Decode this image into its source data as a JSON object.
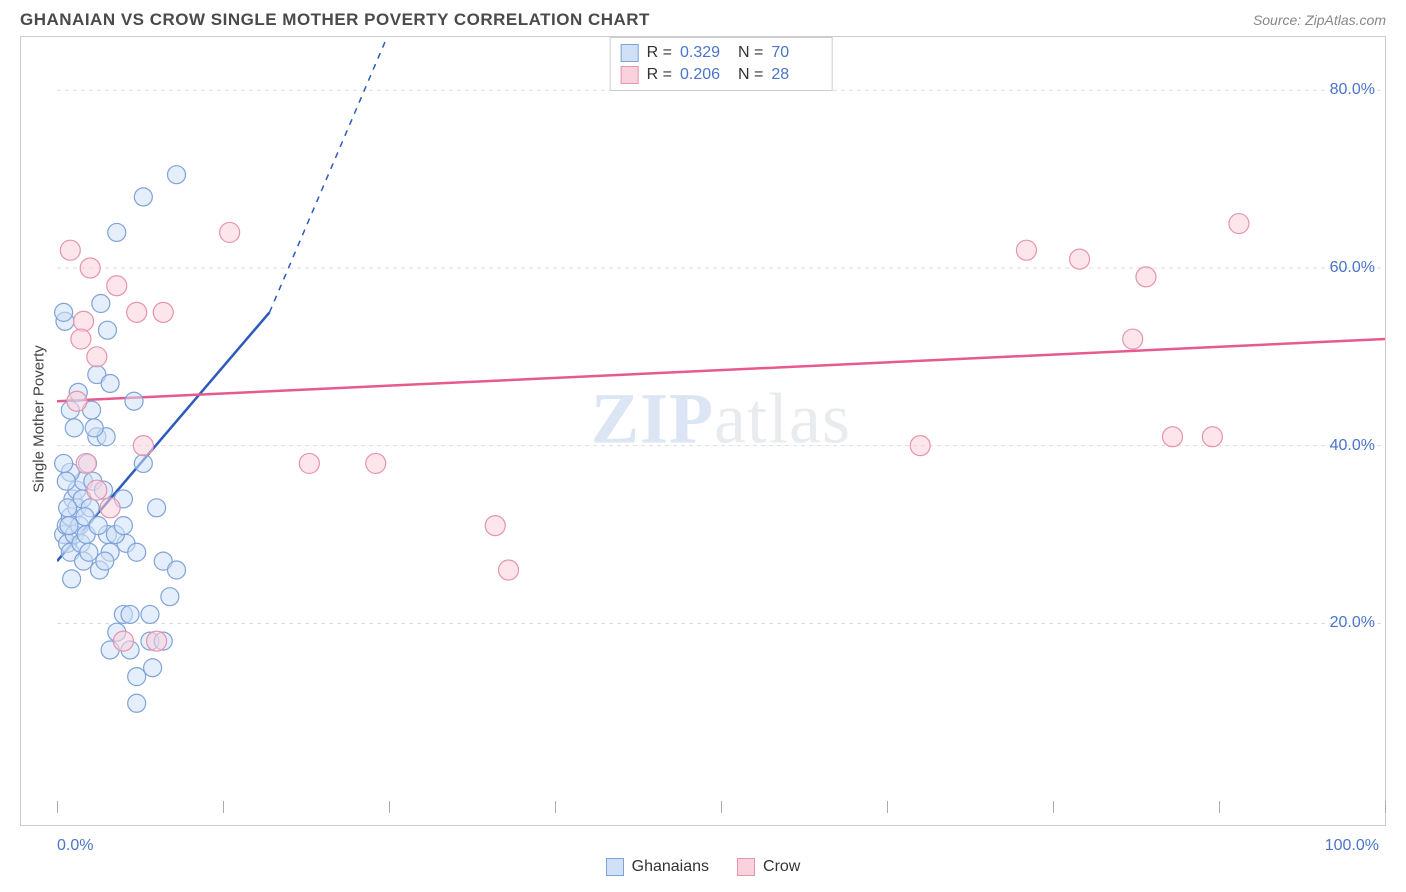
{
  "header": {
    "title": "GHANAIAN VS CROW SINGLE MOTHER POVERTY CORRELATION CHART",
    "source": "Source: ZipAtlas.com"
  },
  "watermark": {
    "bold": "ZIP",
    "thin": "atlas"
  },
  "chart": {
    "type": "scatter",
    "ylabel": "Single Mother Poverty",
    "xlim": [
      0,
      100
    ],
    "ylim": [
      0,
      86
    ],
    "xticks": [
      0,
      12.5,
      25,
      37.5,
      50,
      62.5,
      75,
      87.5,
      100
    ],
    "xtick_labels_shown": {
      "min": "0.0%",
      "max": "100.0%"
    },
    "yticks": [
      20,
      40,
      60,
      80
    ],
    "ytick_labels": [
      "20.0%",
      "40.0%",
      "60.0%",
      "80.0%"
    ],
    "grid_color": "#dddddd",
    "background_color": "#ffffff",
    "series": [
      {
        "name": "Ghanaians",
        "color_fill": "#cfe0f7",
        "color_stroke": "#7fa3d8",
        "marker_radius": 9,
        "fill_opacity": 0.55,
        "trend": {
          "x1": 0,
          "y1": 27,
          "x2": 16,
          "y2": 55,
          "dashed_extend_to_x": 32,
          "dashed_extend_to_y": 111,
          "color": "#2c5bbd",
          "width": 2.5
        },
        "R": "0.329",
        "N": "70",
        "points": [
          [
            0.5,
            30
          ],
          [
            0.7,
            31
          ],
          [
            0.8,
            29
          ],
          [
            1.0,
            32
          ],
          [
            1.0,
            28
          ],
          [
            1.2,
            34
          ],
          [
            1.3,
            30
          ],
          [
            1.5,
            33
          ],
          [
            1.5,
            35
          ],
          [
            1.7,
            31
          ],
          [
            1.8,
            29
          ],
          [
            1.9,
            34
          ],
          [
            2.0,
            27
          ],
          [
            2.0,
            36
          ],
          [
            2.2,
            30
          ],
          [
            2.3,
            38
          ],
          [
            2.5,
            33
          ],
          [
            2.6,
            44
          ],
          [
            2.7,
            36
          ],
          [
            3.0,
            41
          ],
          [
            3.0,
            48
          ],
          [
            3.2,
            26
          ],
          [
            3.3,
            56
          ],
          [
            3.5,
            35
          ],
          [
            3.7,
            41
          ],
          [
            3.8,
            30
          ],
          [
            4.0,
            28
          ],
          [
            4.0,
            47
          ],
          [
            4.0,
            17
          ],
          [
            4.5,
            19
          ],
          [
            4.5,
            64
          ],
          [
            5.0,
            34
          ],
          [
            5.0,
            21
          ],
          [
            5.2,
            29
          ],
          [
            5.5,
            17
          ],
          [
            5.8,
            45
          ],
          [
            6.0,
            28
          ],
          [
            6.0,
            11
          ],
          [
            6.0,
            14
          ],
          [
            6.5,
            38
          ],
          [
            6.5,
            68
          ],
          [
            7.0,
            21
          ],
          [
            7.0,
            18
          ],
          [
            7.2,
            15
          ],
          [
            7.5,
            33
          ],
          [
            8.0,
            27
          ],
          [
            8.0,
            18
          ],
          [
            8.5,
            23
          ],
          [
            9.0,
            70.5
          ],
          [
            9.0,
            26
          ],
          [
            1.0,
            44
          ],
          [
            1.3,
            42
          ],
          [
            1.6,
            46
          ],
          [
            0.8,
            33
          ],
          [
            2.1,
            32
          ],
          [
            0.6,
            54
          ],
          [
            3.8,
            53
          ],
          [
            0.5,
            55
          ],
          [
            1.0,
            37
          ],
          [
            0.7,
            36
          ],
          [
            2.4,
            28
          ],
          [
            1.1,
            25
          ],
          [
            0.9,
            31
          ],
          [
            3.1,
            31
          ],
          [
            0.5,
            38
          ],
          [
            2.8,
            42
          ],
          [
            3.6,
            27
          ],
          [
            4.4,
            30
          ],
          [
            5.0,
            31
          ],
          [
            5.5,
            21
          ]
        ]
      },
      {
        "name": "Crow",
        "color_fill": "#f9d2dd",
        "color_stroke": "#e793ab",
        "marker_radius": 10,
        "fill_opacity": 0.55,
        "trend": {
          "x1": 0,
          "y1": 45,
          "x2": 100,
          "y2": 52,
          "color": "#e75a8d",
          "width": 2.5
        },
        "R": "0.206",
        "N": "28",
        "points": [
          [
            1.0,
            62
          ],
          [
            1.5,
            45
          ],
          [
            2.0,
            54
          ],
          [
            2.2,
            38
          ],
          [
            2.5,
            60
          ],
          [
            3.0,
            50
          ],
          [
            3.0,
            35
          ],
          [
            4.5,
            58
          ],
          [
            6.0,
            55
          ],
          [
            6.5,
            40
          ],
          [
            7.5,
            18
          ],
          [
            8.0,
            55
          ],
          [
            13.0,
            64
          ],
          [
            19.0,
            38
          ],
          [
            24.0,
            38
          ],
          [
            34.0,
            26
          ],
          [
            33.0,
            31
          ],
          [
            65.0,
            40
          ],
          [
            73.0,
            62
          ],
          [
            77.0,
            61
          ],
          [
            81.0,
            52
          ],
          [
            82.0,
            59
          ],
          [
            84.0,
            41
          ],
          [
            87.0,
            41
          ],
          [
            89.0,
            65
          ],
          [
            4.0,
            33
          ],
          [
            5.0,
            18
          ],
          [
            1.8,
            52
          ]
        ]
      }
    ]
  },
  "footer_legend": [
    {
      "label": "Ghanaians",
      "fill": "#cfe0f7",
      "stroke": "#7fa3d8"
    },
    {
      "label": "Crow",
      "fill": "#f9d2dd",
      "stroke": "#e793ab"
    }
  ]
}
